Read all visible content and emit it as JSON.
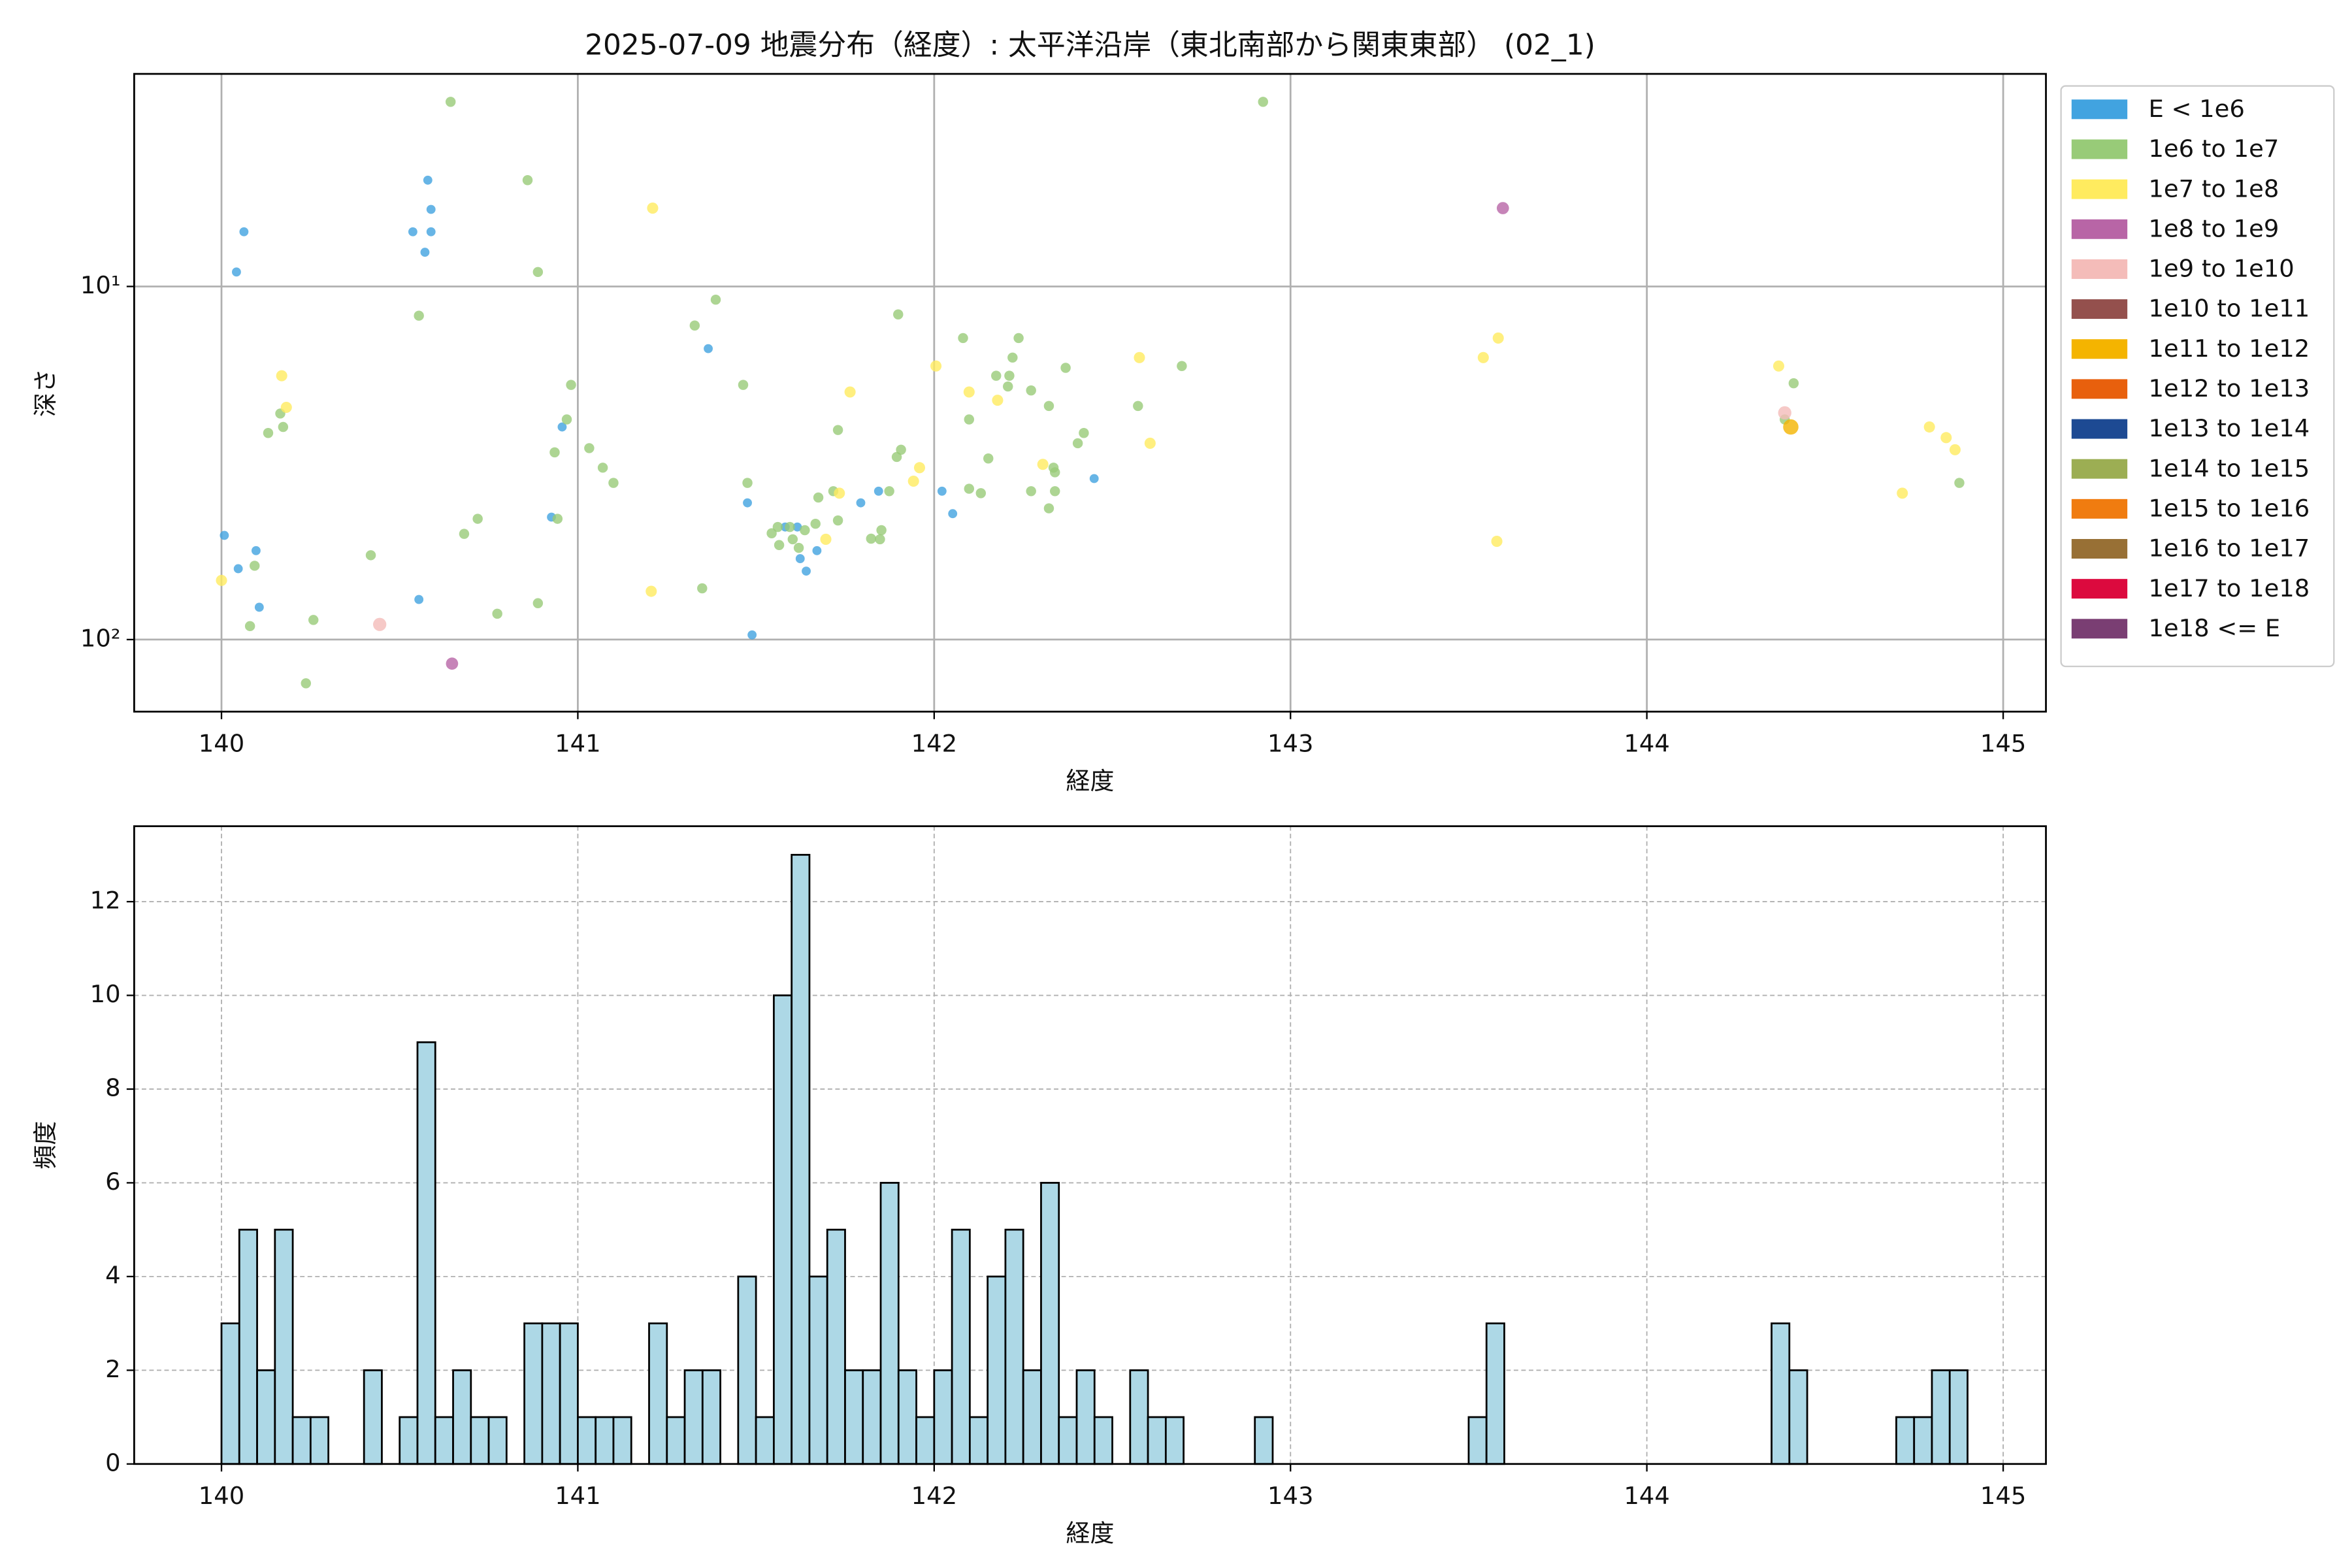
{
  "chart_data": [
    {
      "type": "scatter",
      "title": "2025-07-09 地震分布（経度）: 太平洋沿岸（東北南部から関東東部） (02_1)",
      "xlabel": "経度",
      "ylabel": "深さ",
      "xlim": [
        139.755,
        145.12
      ],
      "xticks": [
        140,
        141,
        142,
        143,
        144,
        145
      ],
      "yscale": "log",
      "ylim": [
        160,
        2.5
      ],
      "yticks": [
        {
          "value": 10,
          "label": "10¹"
        },
        {
          "value": 100,
          "label": "10²"
        }
      ],
      "grid": "solid",
      "legend": "outside-right",
      "series": [
        {
          "name": "E < 1e6",
          "color": "#41a3e0",
          "x": [
            140.008,
            140.047,
            140.063,
            140.042,
            140.097,
            140.106,
            140.537,
            140.571,
            140.579,
            140.588,
            140.588,
            140.554,
            140.926,
            140.956,
            141.366,
            141.476,
            141.489,
            141.582,
            141.616,
            141.624,
            141.641,
            141.671,
            141.794,
            141.844,
            142.022,
            142.052,
            142.449
          ],
          "y": [
            50.7,
            63,
            7.0,
            9.1,
            56,
            81,
            7.0,
            8.0,
            5.0,
            6.05,
            7.0,
            77,
            45,
            25,
            15,
            41,
            97,
            48,
            48,
            59,
            64,
            56,
            41,
            38,
            38,
            44,
            35
          ]
        },
        {
          "name": "1e6 to 1e7",
          "color": "#98cb78",
          "x": [
            140.643,
            140.859,
            140.888,
            140.554,
            140.165,
            140.173,
            140.131,
            140.093,
            140.08,
            140.258,
            140.237,
            140.419,
            140.681,
            140.719,
            140.774,
            140.888,
            140.935,
            140.943,
            140.969,
            140.981,
            141.032,
            141.07,
            141.1,
            141.328,
            141.387,
            141.349,
            141.464,
            141.476,
            141.544,
            141.565,
            141.561,
            141.595,
            141.603,
            141.62,
            141.637,
            141.667,
            141.675,
            141.717,
            141.73,
            141.73,
            141.823,
            141.848,
            141.852,
            141.874,
            141.899,
            141.895,
            141.907,
            142.081,
            142.098,
            142.098,
            142.131,
            142.152,
            142.174,
            142.207,
            142.211,
            142.22,
            142.237,
            142.272,
            142.272,
            142.322,
            142.335,
            142.339,
            142.339,
            142.322,
            142.369,
            142.403,
            142.42,
            142.572,
            142.695,
            142.923,
            144.412,
            144.387,
            144.877
          ],
          "y": [
            3.0,
            5.0,
            9.1,
            12.1,
            22.9,
            25,
            26,
            61.8,
            91.6,
            88,
            133,
            57.7,
            50.2,
            45.5,
            84.5,
            78.9,
            29.5,
            45.5,
            23.8,
            19,
            28.7,
            32.6,
            36,
            12.9,
            10.9,
            71.6,
            19,
            36,
            50,
            54,
            48,
            48,
            52,
            55,
            49,
            47,
            39.6,
            38,
            46,
            25.5,
            51.8,
            52,
            49,
            38,
            12,
            30.4,
            29,
            14,
            23.8,
            37.4,
            38.5,
            30.7,
            17.9,
            19.2,
            17.9,
            15.9,
            14,
            19.7,
            38,
            21.8,
            32.6,
            33.6,
            38,
            42.5,
            17,
            27.8,
            26,
            21.8,
            16.8,
            3.0,
            18.8,
            23.8,
            36
          ]
        },
        {
          "name": "1e7 to 1e8",
          "color": "#ffeb5f",
          "x": [
            140.0,
            140.169,
            140.182,
            141.21,
            141.206,
            141.764,
            141.696,
            141.734,
            141.942,
            141.959,
            142.005,
            142.098,
            142.178,
            142.305,
            142.576,
            142.606,
            143.541,
            143.583,
            143.579,
            144.37,
            144.793,
            144.84,
            144.865,
            144.717
          ],
          "y": [
            68,
            17.9,
            22,
            6.0,
            73,
            19.9,
            52,
            38.5,
            35.6,
            32.6,
            16.8,
            19.9,
            21,
            31.9,
            15.9,
            27.8,
            15.9,
            14,
            52.7,
            16.8,
            25,
            26.8,
            29,
            38.5
          ]
        },
        {
          "name": "1e8 to 1e9",
          "color": "#b865a6",
          "x": [
            143.596,
            140.647
          ],
          "y": [
            6.0,
            117
          ]
        },
        {
          "name": "1e9 to 1e10",
          "color": "#f4bcb9",
          "x": [
            140.444,
            144.387
          ],
          "y": [
            90.6,
            22.8
          ]
        },
        {
          "name": "1e10 to 1e11",
          "color": "#94504d",
          "x": [],
          "y": []
        },
        {
          "name": "1e11 to 1e12",
          "color": "#f4b400",
          "x": [
            144.404
          ],
          "y": [
            25
          ]
        },
        {
          "name": "1e12 to 1e13",
          "color": "#e8600d",
          "x": [],
          "y": []
        },
        {
          "name": "1e13 to 1e14",
          "color": "#1d4a93",
          "x": [],
          "y": []
        },
        {
          "name": "1e14 to 1e15",
          "color": "#9cae53",
          "x": [],
          "y": []
        },
        {
          "name": "1e15 to 1e16",
          "color": "#f07c10",
          "x": [],
          "y": []
        },
        {
          "name": "1e16 to 1e17",
          "color": "#987035",
          "x": [],
          "y": []
        },
        {
          "name": "1e17 to 1e18",
          "color": "#dc0a3e",
          "x": [],
          "y": []
        },
        {
          "name": "1e18 <= E",
          "color": "#7a3e73",
          "x": [],
          "y": []
        }
      ]
    },
    {
      "type": "histogram",
      "xlabel": "経度",
      "ylabel": "頻度",
      "xlim": [
        139.755,
        145.12
      ],
      "xticks": [
        140,
        141,
        142,
        143,
        144,
        145
      ],
      "ylim": [
        0,
        13.61
      ],
      "yticks": [
        0,
        2,
        4,
        6,
        8,
        10,
        12
      ],
      "grid": "dashed",
      "color": "#add8e6",
      "edgecolor": "#000000",
      "bins": [
        140,
        140.05,
        140.1,
        140.15,
        140.2,
        140.25,
        140.3,
        140.35,
        140.4,
        140.45,
        140.5,
        140.55,
        140.6,
        140.65,
        140.7,
        140.75,
        140.8,
        140.85,
        140.9,
        140.95,
        141,
        141.05,
        141.1,
        141.15,
        141.2,
        141.25,
        141.3,
        141.35,
        141.4,
        141.45,
        141.5,
        141.55,
        141.6,
        141.65,
        141.7,
        141.75,
        141.8,
        141.85,
        141.9,
        141.95,
        142,
        142.05,
        142.1,
        142.15,
        142.2,
        142.25,
        142.3,
        142.35,
        142.4,
        142.45,
        142.5,
        142.55,
        142.6,
        142.65,
        142.7,
        142.75,
        142.8,
        142.85,
        142.9,
        142.95,
        143,
        143.05,
        143.1,
        143.15,
        143.2,
        143.25,
        143.3,
        143.35,
        143.4,
        143.45,
        143.5,
        143.55,
        143.6,
        143.65,
        143.7,
        143.75,
        143.8,
        143.85,
        143.9,
        143.95,
        144,
        144.05,
        144.1,
        144.15,
        144.2,
        144.25,
        144.3,
        144.35,
        144.4,
        144.45,
        144.5,
        144.55,
        144.6,
        144.65,
        144.7,
        144.75,
        144.8,
        144.85,
        144.9,
        144.95,
        145
      ],
      "values": [
        3,
        5,
        2,
        5,
        1,
        1,
        0,
        0,
        2,
        0,
        1,
        9,
        1,
        2,
        1,
        1,
        0,
        3,
        3,
        3,
        1,
        1,
        1,
        0,
        3,
        1,
        2,
        2,
        0,
        4,
        1,
        10,
        13,
        4,
        5,
        2,
        2,
        6,
        2,
        1,
        2,
        5,
        1,
        4,
        5,
        2,
        6,
        1,
        2,
        1,
        0,
        2,
        1,
        1,
        0,
        0,
        0,
        0,
        1,
        0,
        0,
        0,
        0,
        0,
        0,
        0,
        0,
        0,
        0,
        0,
        1,
        3,
        0,
        0,
        0,
        0,
        0,
        0,
        0,
        0,
        0,
        0,
        0,
        0,
        0,
        0,
        0,
        3,
        2,
        0,
        0,
        0,
        0,
        0,
        1,
        1,
        2,
        2,
        0,
        0
      ]
    }
  ]
}
